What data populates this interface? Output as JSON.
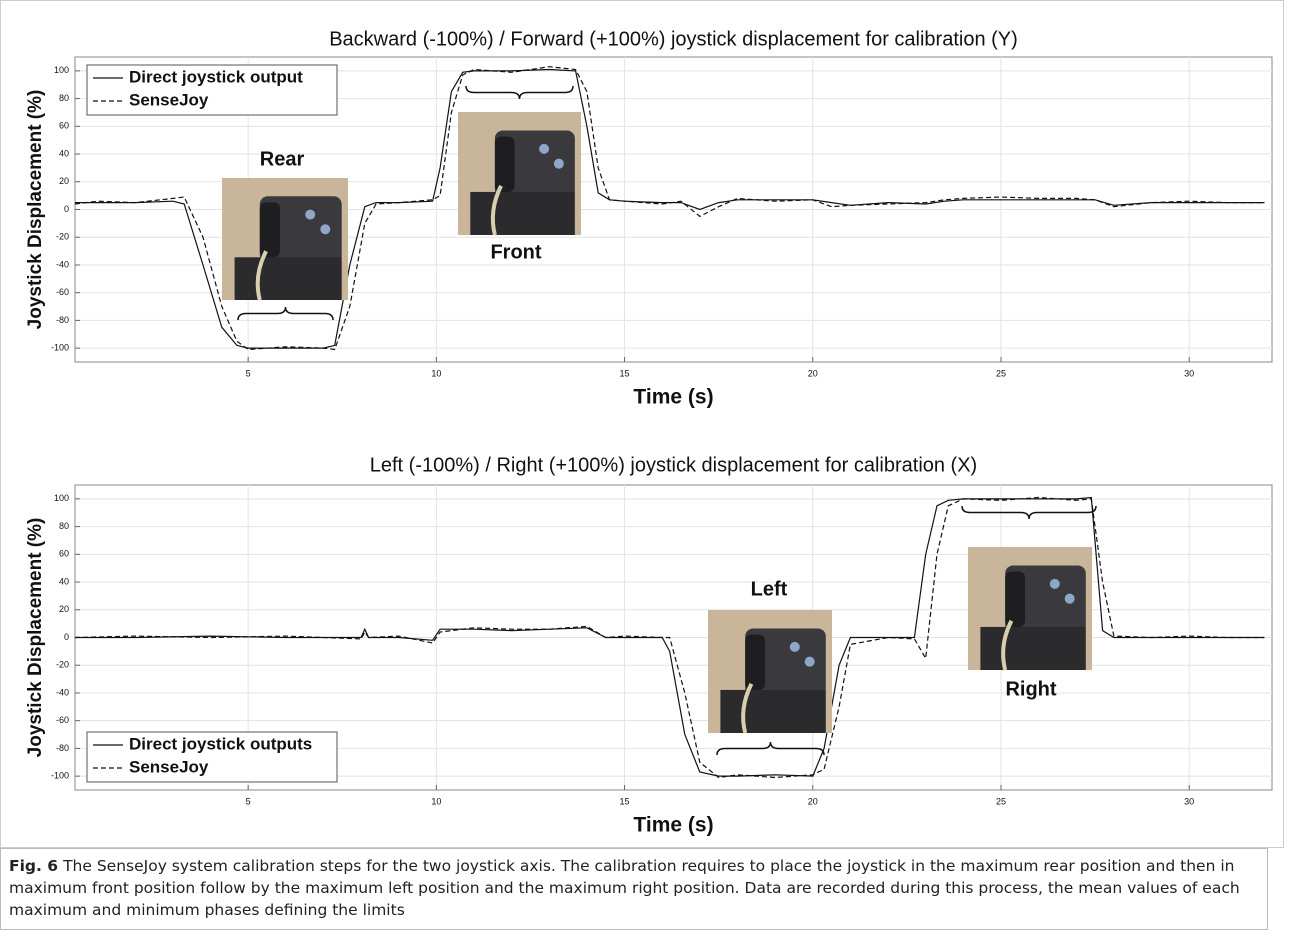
{
  "chart_data": [
    {
      "type": "line",
      "title": "Backward (-100%) / Forward (+100%) joystick displacement for calibration (Y)",
      "x_label": "Time (s)",
      "y_label": "Joystick Displacement (%)",
      "x": [
        0.4,
        1,
        2,
        3,
        3.3,
        3.8,
        4.3,
        4.7,
        5,
        6,
        7,
        7.3,
        7.7,
        8.1,
        8.4,
        9,
        9.9,
        10.1,
        10.4,
        10.7,
        11,
        12,
        13,
        13.7,
        14.0,
        14.3,
        14.6,
        15,
        16,
        16.5,
        17,
        17.5,
        18,
        19,
        20,
        20.5,
        21,
        22,
        23,
        23.5,
        24,
        25,
        26,
        27,
        27.5,
        28,
        29,
        30,
        31,
        32
      ],
      "series": [
        {
          "name": "Direct joystick output",
          "color": "#111111",
          "dash": false,
          "values": [
            5,
            5,
            5,
            6,
            4,
            -40,
            -85,
            -98,
            -100,
            -100,
            -100,
            -98,
            -40,
            2,
            5,
            5,
            6,
            30,
            85,
            99,
            100,
            100,
            101,
            100,
            60,
            12,
            7,
            6,
            5,
            5,
            0,
            5,
            7,
            7,
            7,
            5,
            3,
            5,
            4,
            6,
            7,
            7,
            7,
            7,
            7,
            3,
            5,
            5,
            5,
            5
          ]
        },
        {
          "name": "SenseJoy",
          "color": "#111111",
          "dash": true,
          "values": [
            4,
            6,
            5,
            8,
            9,
            -20,
            -70,
            -95,
            -101,
            -99,
            -100,
            -101,
            -70,
            -10,
            4,
            5,
            7,
            10,
            70,
            97,
            101,
            99,
            103,
            101,
            85,
            30,
            7,
            6,
            4,
            6,
            -5,
            2,
            8,
            6,
            7,
            2,
            3,
            4,
            5,
            7,
            8,
            9,
            8,
            8,
            7,
            2,
            5,
            6,
            5,
            5
          ]
        }
      ],
      "annotations": [
        "Rear",
        "Front"
      ],
      "xlim": [
        0.4,
        32.2
      ],
      "ylim": [
        -110,
        110
      ],
      "xticks": [
        5,
        10,
        15,
        20,
        25,
        30
      ],
      "yticks": [
        100,
        80,
        60,
        40,
        20,
        0,
        -20,
        -40,
        -60,
        -80,
        -100
      ],
      "grid": true,
      "legend": "upper-left"
    },
    {
      "type": "line",
      "title": "Left (-100%) / Right (+100%) joystick displacement for calibration (X)",
      "x_label": "Time (s)",
      "y_label": "Joystick Displacement (%)",
      "x": [
        0.4,
        2,
        4,
        6,
        8,
        8.1,
        8.2,
        9,
        9.9,
        10.1,
        11,
        12,
        13,
        14,
        14.5,
        15,
        16,
        16.2,
        16.6,
        17,
        17.5,
        18,
        19,
        20,
        20.3,
        20.7,
        21,
        22,
        22.7,
        23,
        23.3,
        23.6,
        24,
        25,
        26,
        27,
        27.4,
        27.7,
        28,
        29,
        30,
        31,
        32
      ],
      "series": [
        {
          "name": "Direct joystick outputs",
          "color": "#111111",
          "dash": false,
          "values": [
            0,
            0,
            1,
            0,
            0,
            6,
            0,
            0,
            -2,
            6,
            6,
            5,
            6,
            7,
            0,
            0,
            0,
            -10,
            -70,
            -97,
            -100,
            -100,
            -99,
            -100,
            -80,
            -20,
            0,
            0,
            0,
            60,
            95,
            99,
            100,
            100,
            100,
            100,
            101,
            5,
            0,
            0,
            0,
            0,
            0
          ]
        },
        {
          "name": "SenseJoy",
          "color": "#111111",
          "dash": true,
          "values": [
            0,
            1,
            0,
            1,
            -1,
            4,
            0,
            1,
            -4,
            4,
            7,
            6,
            6,
            8,
            0,
            1,
            0,
            0,
            -40,
            -90,
            -101,
            -99,
            -101,
            -99,
            -95,
            -50,
            -5,
            0,
            -1,
            -15,
            60,
            95,
            100,
            99,
            101,
            99,
            100,
            40,
            1,
            0,
            1,
            0,
            0
          ]
        }
      ],
      "annotations": [
        "Left",
        "Right"
      ],
      "xlim": [
        0.4,
        32.2
      ],
      "ylim": [
        -110,
        110
      ],
      "xticks": [
        5,
        10,
        15,
        20,
        25,
        30
      ],
      "yticks": [
        100,
        80,
        60,
        40,
        20,
        0,
        -20,
        -40,
        -60,
        -80,
        -100
      ],
      "grid": true,
      "legend": "lower-left"
    }
  ],
  "caption_label": "Fig. 6",
  "caption": "The SenseJoy system calibration steps for the two joystick axis. The calibration requires to place the joystick in the maximum rear position and then in maximum front position follow by the maximum left position and the maximum right position. Data are recorded during this process, the mean values of each maximum and minimum phases defining the limits"
}
